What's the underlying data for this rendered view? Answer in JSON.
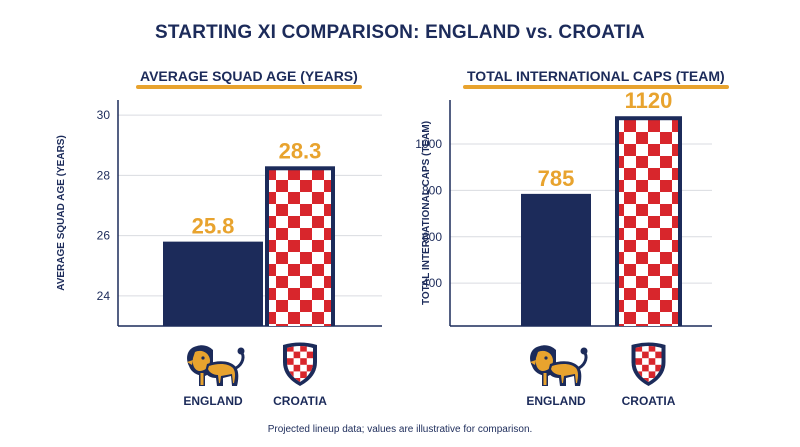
{
  "title": "STARTING XI COMPARISON: ENGLAND vs. CROATIA",
  "footnote": "Projected lineup data; values are illustrative for comparison.",
  "colors": {
    "navy": "#1c2b5a",
    "gold": "#e8a32e",
    "red": "#d8262c",
    "white": "#ffffff",
    "grid": "#d9dbe0"
  },
  "teams": [
    {
      "name": "ENGLAND",
      "icon": "lion-icon"
    },
    {
      "name": "CROATIA",
      "icon": "checkered-shield-icon"
    }
  ],
  "chart_data": [
    {
      "type": "bar",
      "title": "AVERAGE SQUAD AGE (YEARS)",
      "ylabel": "AVERAGE SQUAD AGE (YEARS)",
      "categories": [
        "ENGLAND",
        "CROATIA"
      ],
      "values": [
        25.8,
        28.3
      ],
      "value_labels": [
        "25.8",
        "28.3"
      ],
      "ylim": [
        23,
        30.5
      ],
      "yticks": [
        24,
        26,
        28,
        30
      ],
      "grid": true
    },
    {
      "type": "bar",
      "title": "TOTAL INTERNATIONAL CAPS (TEAM)",
      "ylabel": "TOTAL INTERNATIONAL CAPS (TEAM)",
      "categories": [
        "ENGLAND",
        "CROATIA"
      ],
      "values": [
        785,
        1120
      ],
      "value_labels": [
        "785",
        "1120"
      ],
      "ylim": [
        215,
        1190
      ],
      "yticks": [
        400,
        600,
        800,
        1000
      ],
      "grid": true
    }
  ]
}
